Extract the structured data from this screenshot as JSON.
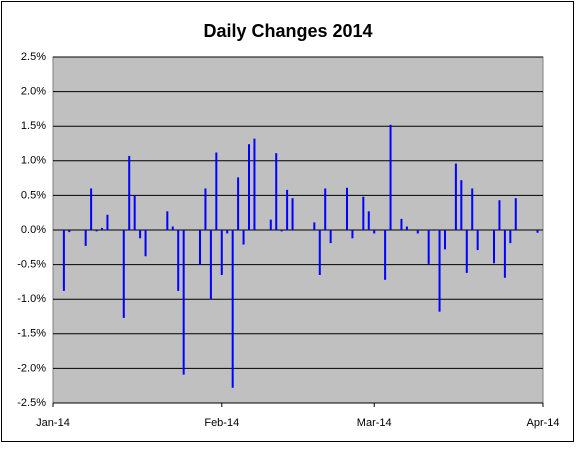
{
  "chart_data": {
    "type": "bar",
    "title": "Daily Changes 2014",
    "color": "#0000ff",
    "grid": true,
    "x": [
      2,
      3,
      6,
      7,
      8,
      9,
      10,
      13,
      14,
      15,
      16,
      17,
      21,
      22,
      23,
      24,
      27,
      28,
      29,
      30,
      31,
      32,
      33,
      34,
      35,
      36,
      37,
      40,
      41,
      42,
      43,
      44,
      48,
      49,
      50,
      51,
      54,
      55,
      57,
      58,
      59,
      61,
      62,
      64,
      65,
      67,
      69,
      70,
      71,
      72,
      74,
      75,
      76,
      77,
      78,
      81,
      82,
      83,
      84,
      85,
      89
    ],
    "values": [
      -0.88,
      -0.03,
      -0.23,
      0.6,
      -0.02,
      0.03,
      0.22,
      -1.27,
      1.07,
      0.5,
      -0.12,
      -0.38,
      0.27,
      0.05,
      -0.88,
      -2.09,
      -0.5,
      0.6,
      -1.0,
      1.12,
      -0.65,
      -0.05,
      -2.28,
      0.76,
      -0.21,
      1.24,
      1.32,
      0.15,
      1.11,
      -0.02,
      0.58,
      0.46,
      0.11,
      -0.65,
      0.6,
      -0.19,
      0.61,
      -0.12,
      0.48,
      0.27,
      -0.05,
      -0.72,
      1.52,
      0.16,
      0.05,
      -0.05,
      -0.49,
      0.01,
      -1.18,
      -0.28,
      0.96,
      0.72,
      -0.62,
      0.6,
      -0.29,
      -0.48,
      0.43,
      -0.69,
      -0.19,
      0.46,
      -0.04
    ],
    "xlim": [
      0,
      90
    ],
    "xticks": [
      {
        "value": 0,
        "label": "Jan-14"
      },
      {
        "value": 31,
        "label": "Feb-14"
      },
      {
        "value": 59,
        "label": "Mar-14"
      },
      {
        "value": 90,
        "label": "Apr-14"
      }
    ],
    "ylim": [
      -2.5,
      2.5
    ],
    "yticks": [
      {
        "value": -2.5,
        "label": "-2.5%"
      },
      {
        "value": -2.0,
        "label": "-2.0%"
      },
      {
        "value": -1.5,
        "label": "-1.5%"
      },
      {
        "value": -1.0,
        "label": "-1.0%"
      },
      {
        "value": -0.5,
        "label": "-0.5%"
      },
      {
        "value": 0,
        "label": "0.0%"
      },
      {
        "value": 0.5,
        "label": "0.5%"
      },
      {
        "value": 1.0,
        "label": "1.0%"
      },
      {
        "value": 1.5,
        "label": "1.5%"
      },
      {
        "value": 2.0,
        "label": "2.0%"
      },
      {
        "value": 2.5,
        "label": "2.5%"
      }
    ]
  }
}
